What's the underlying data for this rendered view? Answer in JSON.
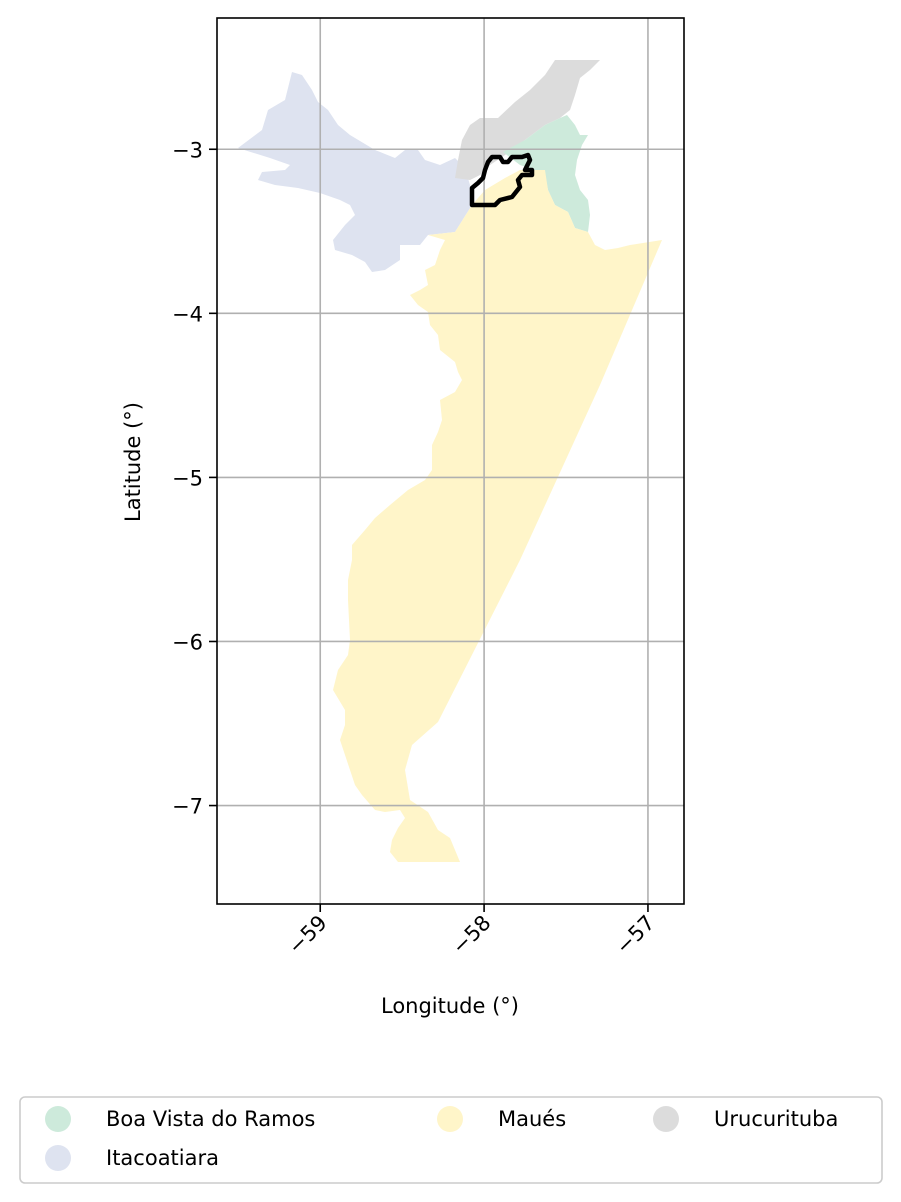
{
  "chart_data": {
    "type": "map",
    "xlabel": "Longitude (°)",
    "ylabel": "Latitude (°)",
    "xlim": [
      -59.63,
      -56.78
    ],
    "ylim": [
      -7.6,
      -2.2
    ],
    "xticks": [
      -59,
      -58,
      -57
    ],
    "yticks": [
      -3,
      -4,
      -5,
      -6,
      -7
    ],
    "grid": true,
    "highlight_outline_color": "#000000",
    "legend": {
      "placement": "bottom",
      "columns": 3,
      "entries": [
        {
          "label": "Boa Vista do Ramos",
          "color": "#cdeadb"
        },
        {
          "label": "Itacoatiara",
          "color": "#dee3f0"
        },
        {
          "label": "Maués",
          "color": "#fff5c9"
        },
        {
          "label": "Urucurituba",
          "color": "#dcdcdc"
        }
      ]
    }
  }
}
